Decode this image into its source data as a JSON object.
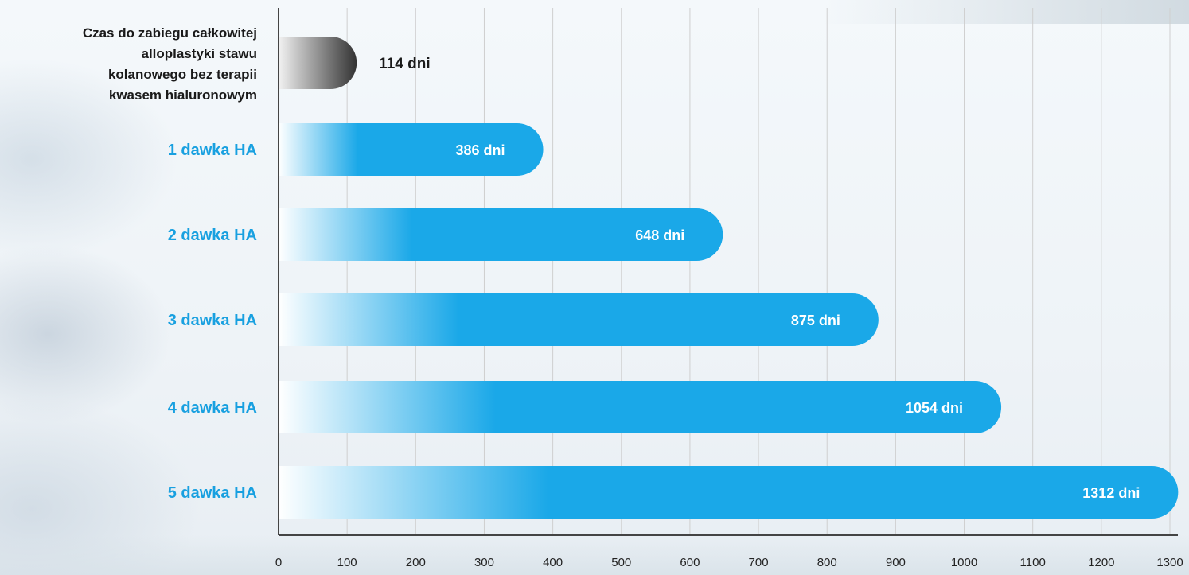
{
  "colors": {
    "accent": "#1aa8e8",
    "accent_light": "#ffffff",
    "reference_dark": "#333333",
    "reference_light": "#f2f2f2",
    "label_dark": "#1a1a1a",
    "label_blue": "#18a0e0",
    "grid": "#cfcfcf",
    "axis": "#444444"
  },
  "chart_data": {
    "type": "bar",
    "orientation": "horizontal",
    "title": "",
    "xlabel": "",
    "ylabel": "",
    "xlim": [
      0,
      1300
    ],
    "x_ticks": [
      "0",
      "100",
      "200",
      "300",
      "400",
      "500",
      "600",
      "700",
      "800",
      "900",
      "1000",
      "1100",
      "1200",
      "1300"
    ],
    "grid": "vertical",
    "bars": [
      {
        "category": "Czas do zabiegu całkowitej alloplastyki stawu kolanowego bez terapii kwasem hialuronowym",
        "category_lines": [
          "Czas do zabiegu całkowitej",
          "alloplastyki stawu",
          "kolanowego bez terapii",
          "kwasem hialuronowym"
        ],
        "value": 114,
        "value_label": "114 dni",
        "style": "reference"
      },
      {
        "category": "1 dawka HA",
        "category_lines": [
          "1 dawka HA"
        ],
        "value": 386,
        "value_label": "386 dni",
        "style": "accent"
      },
      {
        "category": "2 dawka HA",
        "category_lines": [
          "2 dawka HA"
        ],
        "value": 648,
        "value_label": "648 dni",
        "style": "accent"
      },
      {
        "category": "3 dawka HA",
        "category_lines": [
          "3 dawka HA"
        ],
        "value": 875,
        "value_label": "875 dni",
        "style": "accent"
      },
      {
        "category": "4 dawka HA",
        "category_lines": [
          "4 dawka HA"
        ],
        "value": 1054,
        "value_label": "1054 dni",
        "style": "accent"
      },
      {
        "category": "5 dawka HA",
        "category_lines": [
          "5 dawka HA"
        ],
        "value": 1312,
        "value_label": "1312 dni",
        "style": "accent"
      }
    ]
  }
}
